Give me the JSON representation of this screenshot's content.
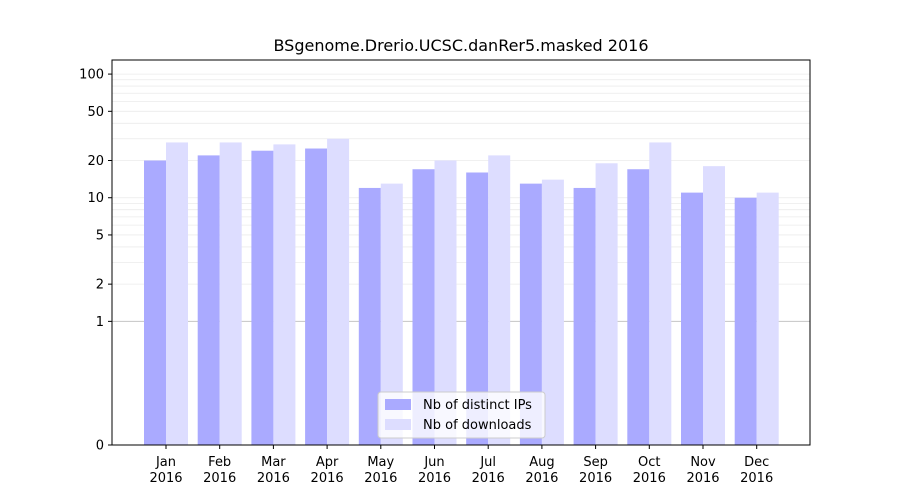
{
  "chart_data": {
    "type": "bar",
    "title": "BSgenome.Drerio.UCSC.danRer5.masked 2016",
    "xlabel": "",
    "ylabel": "",
    "y_scale": "symlog",
    "ylim": [
      0,
      130
    ],
    "y_ticks": [
      0,
      1,
      2,
      5,
      10,
      20,
      50,
      100
    ],
    "categories": [
      "Jan\n2016",
      "Feb\n2016",
      "Mar\n2016",
      "Apr\n2016",
      "May\n2016",
      "Jun\n2016",
      "Jul\n2016",
      "Aug\n2016",
      "Sep\n2016",
      "Oct\n2016",
      "Nov\n2016",
      "Dec\n2016"
    ],
    "series": [
      {
        "name": "Nb of distinct IPs",
        "color": "#aaaaff",
        "values": [
          20,
          22,
          24,
          25,
          12,
          17,
          16,
          13,
          12,
          17,
          11,
          10
        ]
      },
      {
        "name": "Nb of downloads",
        "color": "#ddddff",
        "values": [
          28,
          28,
          27,
          30,
          13,
          20,
          22,
          14,
          19,
          28,
          18,
          11
        ]
      }
    ],
    "grid": true,
    "legend_position": "lower-center"
  }
}
